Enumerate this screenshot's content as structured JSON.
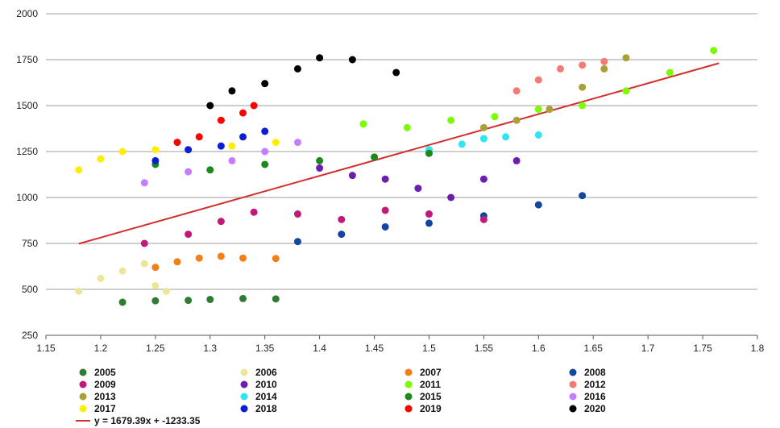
{
  "chart_data": {
    "type": "scatter",
    "title": "",
    "xlabel": "",
    "ylabel": "",
    "xlim": [
      1.15,
      1.8
    ],
    "ylim": [
      250,
      2000
    ],
    "x_ticks": [
      "1.15",
      "1.2",
      "1.25",
      "1.3",
      "1.35",
      "1.4",
      "1.45",
      "1.5",
      "1.55",
      "1.6",
      "1.65",
      "1.7",
      "1.75",
      "1.8"
    ],
    "y_ticks": [
      "250",
      "500",
      "750",
      "1000",
      "1250",
      "1500",
      "1750",
      "2000"
    ],
    "grid": "horizontal",
    "legend_position": "bottom",
    "series": [
      {
        "name": "2005",
        "color": "#2e7d32",
        "points": [
          [
            1.22,
            430
          ],
          [
            1.25,
            438
          ],
          [
            1.28,
            440
          ],
          [
            1.3,
            445
          ],
          [
            1.33,
            450
          ],
          [
            1.36,
            448
          ]
        ]
      },
      {
        "name": "2006",
        "color": "#ede59a",
        "points": [
          [
            1.18,
            490
          ],
          [
            1.2,
            560
          ],
          [
            1.22,
            600
          ],
          [
            1.24,
            640
          ],
          [
            1.25,
            520
          ],
          [
            1.26,
            490
          ]
        ]
      },
      {
        "name": "2007",
        "color": "#f57f17",
        "points": [
          [
            1.25,
            620
          ],
          [
            1.27,
            650
          ],
          [
            1.29,
            670
          ],
          [
            1.31,
            680
          ],
          [
            1.33,
            670
          ],
          [
            1.36,
            668
          ]
        ]
      },
      {
        "name": "2008",
        "color": "#1346a0",
        "points": [
          [
            1.38,
            760
          ],
          [
            1.42,
            800
          ],
          [
            1.46,
            840
          ],
          [
            1.5,
            860
          ],
          [
            1.55,
            900
          ],
          [
            1.6,
            960
          ],
          [
            1.64,
            1010
          ]
        ]
      },
      {
        "name": "2009",
        "color": "#c2187a",
        "points": [
          [
            1.24,
            750
          ],
          [
            1.28,
            800
          ],
          [
            1.31,
            870
          ],
          [
            1.34,
            920
          ],
          [
            1.38,
            910
          ],
          [
            1.42,
            880
          ],
          [
            1.46,
            930
          ],
          [
            1.5,
            910
          ],
          [
            1.55,
            880
          ]
        ]
      },
      {
        "name": "2010",
        "color": "#6a1fb0",
        "points": [
          [
            1.4,
            1160
          ],
          [
            1.43,
            1120
          ],
          [
            1.46,
            1100
          ],
          [
            1.49,
            1050
          ],
          [
            1.52,
            1000
          ],
          [
            1.55,
            1100
          ],
          [
            1.58,
            1200
          ]
        ]
      },
      {
        "name": "2011",
        "color": "#7cfc00",
        "points": [
          [
            1.44,
            1400
          ],
          [
            1.48,
            1380
          ],
          [
            1.52,
            1420
          ],
          [
            1.56,
            1440
          ],
          [
            1.6,
            1480
          ],
          [
            1.64,
            1500
          ],
          [
            1.68,
            1580
          ],
          [
            1.72,
            1680
          ],
          [
            1.76,
            1800
          ]
        ]
      },
      {
        "name": "2012",
        "color": "#f47a74",
        "points": [
          [
            1.58,
            1580
          ],
          [
            1.6,
            1640
          ],
          [
            1.62,
            1700
          ],
          [
            1.64,
            1720
          ],
          [
            1.66,
            1740
          ]
        ]
      },
      {
        "name": "2013",
        "color": "#a9a03a",
        "points": [
          [
            1.55,
            1380
          ],
          [
            1.58,
            1420
          ],
          [
            1.61,
            1480
          ],
          [
            1.64,
            1600
          ],
          [
            1.66,
            1700
          ],
          [
            1.68,
            1760
          ]
        ]
      },
      {
        "name": "2014",
        "color": "#2ee6f0",
        "points": [
          [
            1.5,
            1260
          ],
          [
            1.53,
            1290
          ],
          [
            1.55,
            1320
          ],
          [
            1.57,
            1330
          ],
          [
            1.6,
            1340
          ]
        ]
      },
      {
        "name": "2015",
        "color": "#1b8a1b",
        "points": [
          [
            1.25,
            1180
          ],
          [
            1.3,
            1150
          ],
          [
            1.35,
            1180
          ],
          [
            1.4,
            1200
          ],
          [
            1.45,
            1220
          ],
          [
            1.5,
            1240
          ]
        ]
      },
      {
        "name": "2016",
        "color": "#c77dff",
        "points": [
          [
            1.24,
            1080
          ],
          [
            1.28,
            1140
          ],
          [
            1.32,
            1200
          ],
          [
            1.35,
            1250
          ],
          [
            1.38,
            1300
          ]
        ]
      },
      {
        "name": "2017",
        "color": "#ffee00",
        "points": [
          [
            1.18,
            1150
          ],
          [
            1.2,
            1210
          ],
          [
            1.22,
            1250
          ],
          [
            1.25,
            1260
          ],
          [
            1.28,
            1260
          ],
          [
            1.32,
            1280
          ],
          [
            1.36,
            1300
          ]
        ]
      },
      {
        "name": "2018",
        "color": "#0a1ed6",
        "points": [
          [
            1.25,
            1200
          ],
          [
            1.28,
            1260
          ],
          [
            1.31,
            1280
          ],
          [
            1.33,
            1330
          ],
          [
            1.35,
            1360
          ]
        ]
      },
      {
        "name": "2019",
        "color": "#ff0000",
        "points": [
          [
            1.27,
            1300
          ],
          [
            1.29,
            1330
          ],
          [
            1.31,
            1420
          ],
          [
            1.33,
            1460
          ],
          [
            1.34,
            1500
          ]
        ]
      },
      {
        "name": "2020",
        "color": "#000000",
        "points": [
          [
            1.3,
            1500
          ],
          [
            1.32,
            1580
          ],
          [
            1.35,
            1620
          ],
          [
            1.38,
            1700
          ],
          [
            1.4,
            1760
          ],
          [
            1.43,
            1750
          ],
          [
            1.47,
            1680
          ]
        ]
      }
    ],
    "trendline": {
      "label": "y = 1679.39x + -1233.35",
      "slope": 1679.39,
      "intercept": -1233.35,
      "x_range": [
        1.18,
        1.765
      ],
      "color": "#d32f2f"
    }
  }
}
